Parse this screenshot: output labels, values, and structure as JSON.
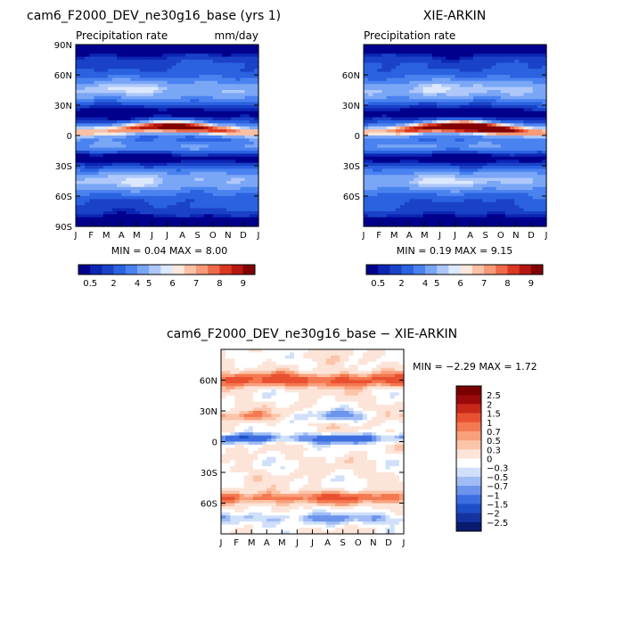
{
  "colors": {
    "blue_scale": [
      "#00008c",
      "#0c26b4",
      "#1a42c8",
      "#2a62e0",
      "#4a82f0",
      "#7aa6f6",
      "#aec8fa",
      "#dce8fc",
      "#fde8dc",
      "#fbc0a6",
      "#f69a78",
      "#ee6a4a",
      "#dc3820",
      "#b41810",
      "#820000"
    ],
    "diff_scale": [
      "#0a1a6e",
      "#1432a0",
      "#1e4ec8",
      "#3c6ee0",
      "#6c94ec",
      "#a0bcf4",
      "#d0e0fa",
      "#ffffff",
      "#fde4d8",
      "#fcc4a8",
      "#f9a07c",
      "#f47850",
      "#e85030",
      "#c8281a",
      "#9a0a0a",
      "#7a0000"
    ]
  },
  "chart_data": [
    {
      "type": "heatmap",
      "name": "model",
      "title": "cam6_F2000_DEV_ne30g16_base (yrs 1)",
      "subtitle_left": "Precipitation rate",
      "subtitle_right": "mm/day",
      "x_ticks": [
        "J",
        "F",
        "M",
        "A",
        "M",
        "J",
        "J",
        "A",
        "S",
        "O",
        "N",
        "D",
        "J"
      ],
      "y_ticks": [
        "90N",
        "60N",
        "30N",
        "0",
        "30S",
        "60S",
        "90S"
      ],
      "ylim": [
        -90,
        90
      ],
      "stats": "MIN =    0.04 MAX =     8.00",
      "colorbar_labels": [
        "0.5",
        "2",
        "4",
        "5",
        "6",
        "7",
        "8",
        "9"
      ],
      "itcz_peak": 8.0,
      "min": 0.04,
      "max": 8.0
    },
    {
      "type": "heatmap",
      "name": "obs",
      "title": "XIE-ARKIN",
      "subtitle_left": "Precipitation rate",
      "subtitle_right": "",
      "x_ticks": [
        "J",
        "F",
        "M",
        "A",
        "M",
        "J",
        "J",
        "A",
        "S",
        "O",
        "N",
        "D",
        "J"
      ],
      "y_ticks": [
        "60N",
        "30N",
        "0",
        "30S",
        "60S"
      ],
      "ylim": [
        -90,
        90
      ],
      "stats": "MIN =    0.19 MAX =     9.15",
      "colorbar_labels": [
        "0.5",
        "2",
        "4",
        "5",
        "6",
        "7",
        "8",
        "9"
      ],
      "itcz_peak": 9.15,
      "min": 0.19,
      "max": 9.15
    },
    {
      "type": "heatmap",
      "name": "diff",
      "title": "cam6_F2000_DEV_ne30g16_base − XIE-ARKIN",
      "x_ticks": [
        "J",
        "F",
        "M",
        "A",
        "M",
        "J",
        "J",
        "A",
        "S",
        "O",
        "N",
        "D",
        "J"
      ],
      "y_ticks": [
        "60N",
        "30N",
        "0",
        "30S",
        "60S"
      ],
      "ylim": [
        -90,
        90
      ],
      "stats": "MIN =   −2.29 MAX =     1.72",
      "colorbar_labels": [
        "2.5",
        "2",
        "1.5",
        "1",
        "0.7",
        "0.5",
        "0.3",
        "0",
        "−0.3",
        "−0.5",
        "−0.7",
        "−1",
        "−1.5",
        "−2",
        "−2.5"
      ],
      "min": -2.29,
      "max": 1.72
    }
  ]
}
